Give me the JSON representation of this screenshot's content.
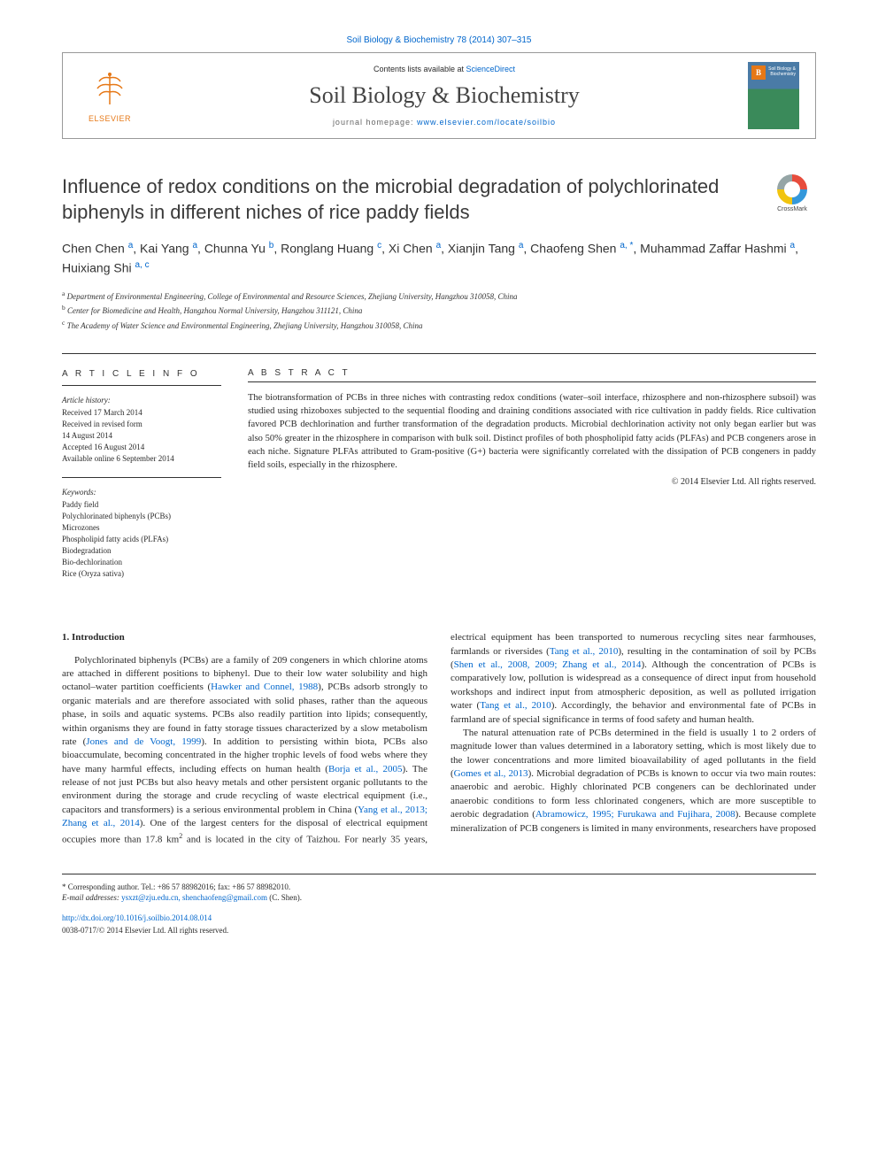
{
  "header": {
    "citation": "Soil Biology & Biochemistry 78 (2014) 307–315",
    "contents_prefix": "Contents lists available at ",
    "contents_link": "ScienceDirect",
    "journal_name": "Soil Biology & Biochemistry",
    "homepage_prefix": "journal homepage: ",
    "homepage_url": "www.elsevier.com/locate/soilbio",
    "elsevier_label": "ELSEVIER",
    "cover_badge": "B",
    "cover_text": "Soil Biology & Biochemistry"
  },
  "crossmark": {
    "label": "CrossMark"
  },
  "title": "Influence of redox conditions on the microbial degradation of polychlorinated biphenyls in different niches of rice paddy fields",
  "authors_html": "Chen Chen <sup>a</sup>, Kai Yang <sup>a</sup>, Chunna Yu <sup>b</sup>, Ronglang Huang <sup>c</sup>, Xi Chen <sup>a</sup>, Xianjin Tang <sup>a</sup>, Chaofeng Shen <sup>a, *</sup>, Muhammad Zaffar Hashmi <sup>a</sup>, Huixiang Shi <sup>a, c</sup>",
  "affiliations": [
    {
      "sup": "a",
      "text": "Department of Environmental Engineering, College of Environmental and Resource Sciences, Zhejiang University, Hangzhou 310058, China"
    },
    {
      "sup": "b",
      "text": "Center for Biomedicine and Health, Hangzhou Normal University, Hangzhou 311121, China"
    },
    {
      "sup": "c",
      "text": "The Academy of Water Science and Environmental Engineering, Zhejiang University, Hangzhou 310058, China"
    }
  ],
  "info": {
    "heading1": "A R T I C L E   I N F O",
    "history_label": "Article history:",
    "history": [
      "Received 17 March 2014",
      "Received in revised form",
      "14 August 2014",
      "Accepted 16 August 2014",
      "Available online 6 September 2014"
    ],
    "keywords_label": "Keywords:",
    "keywords": [
      "Paddy field",
      "Polychlorinated biphenyls (PCBs)",
      "Microzones",
      "Phospholipid fatty acids (PLFAs)",
      "Biodegradation",
      "Bio-dechlorination",
      "Rice (Oryza sativa)"
    ]
  },
  "abstract": {
    "heading": "A B S T R A C T",
    "text": "The biotransformation of PCBs in three niches with contrasting redox conditions (water–soil interface, rhizosphere and non-rhizosphere subsoil) was studied using rhizoboxes subjected to the sequential flooding and draining conditions associated with rice cultivation in paddy fields. Rice cultivation favored PCB dechlorination and further transformation of the degradation products. Microbial dechlorination activity not only began earlier but was also 50% greater in the rhizosphere in comparison with bulk soil. Distinct profiles of both phospholipid fatty acids (PLFAs) and PCB congeners arose in each niche. Signature PLFAs attributed to Gram-positive (G+) bacteria were significantly correlated with the dissipation of PCB congeners in paddy field soils, especially in the rhizosphere.",
    "copyright": "© 2014 Elsevier Ltd. All rights reserved."
  },
  "section1": {
    "heading": "1. Introduction"
  },
  "footer": {
    "corresponding_label": "* Corresponding author. Tel.: +86 57 88982016; fax: +86 57 88982010.",
    "email_label": "E-mail addresses:",
    "emails": "ysxzt@zju.edu.cn, shenchaofeng@gmail.com",
    "email_tail": " (C. Shen).",
    "doi": "http://dx.doi.org/10.1016/j.soilbio.2014.08.014",
    "issn": "0038-0717/© 2014 Elsevier Ltd. All rights reserved."
  },
  "colors": {
    "link": "#0066cc",
    "elsevier_orange": "#e67817",
    "text": "#2a2a2a",
    "rule": "#333333"
  }
}
